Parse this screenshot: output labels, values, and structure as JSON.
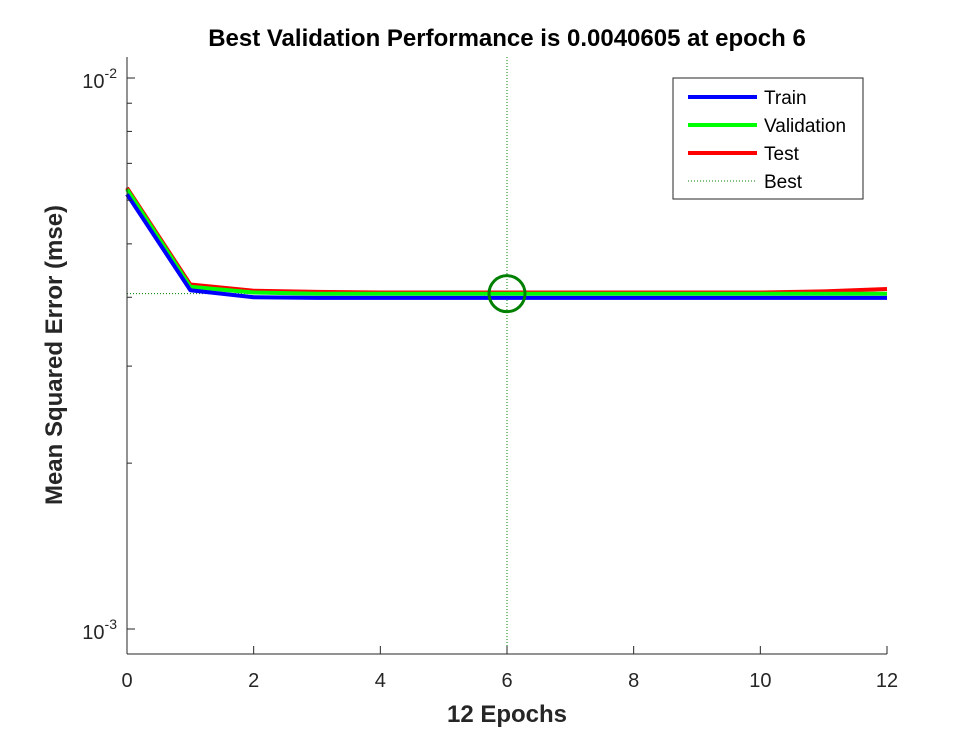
{
  "chart_data": {
    "type": "line",
    "title": "Best Validation Performance is 0.0040605 at epoch 6",
    "xlabel": "12 Epochs",
    "ylabel": "Mean Squared Error  (mse)",
    "xlim": [
      0,
      12
    ],
    "ylim": [
      0.00095,
      0.0105
    ],
    "yscale": "log",
    "grid": false,
    "legend_position": "top-right",
    "x_ticks": [
      0,
      2,
      4,
      6,
      8,
      10,
      12
    ],
    "x_tick_labels": [
      "0",
      "2",
      "4",
      "6",
      "8",
      "10",
      "12"
    ],
    "y_ticks": [
      0.01,
      0.001
    ],
    "y_tick_labels": [
      {
        "base": "10",
        "exp": "-2"
      },
      {
        "base": "10",
        "exp": "-3"
      }
    ],
    "x": [
      0,
      1,
      2,
      3,
      4,
      5,
      6,
      7,
      8,
      9,
      10,
      11,
      12
    ],
    "series": [
      {
        "name": "Train",
        "color": "#0000ff",
        "values": [
          0.00615,
          0.00412,
          0.004,
          0.00399,
          0.00399,
          0.00399,
          0.00399,
          0.00399,
          0.00399,
          0.00399,
          0.00399,
          0.00399,
          0.00399
        ]
      },
      {
        "name": "Validation",
        "color": "#00ff00",
        "values": [
          0.00628,
          0.00418,
          0.00408,
          0.00406,
          0.00406,
          0.00406,
          0.0040605,
          0.00406,
          0.00406,
          0.00406,
          0.00406,
          0.00406,
          0.00406
        ]
      },
      {
        "name": "Test",
        "color": "#ff0000",
        "values": [
          0.00632,
          0.00422,
          0.00411,
          0.00409,
          0.00408,
          0.00408,
          0.00408,
          0.00408,
          0.00408,
          0.00408,
          0.00408,
          0.0041,
          0.00414
        ]
      },
      {
        "name": "Best",
        "color": "#008000",
        "style": "dotted"
      }
    ],
    "best": {
      "epoch": 6,
      "value": 0.0040605
    }
  }
}
